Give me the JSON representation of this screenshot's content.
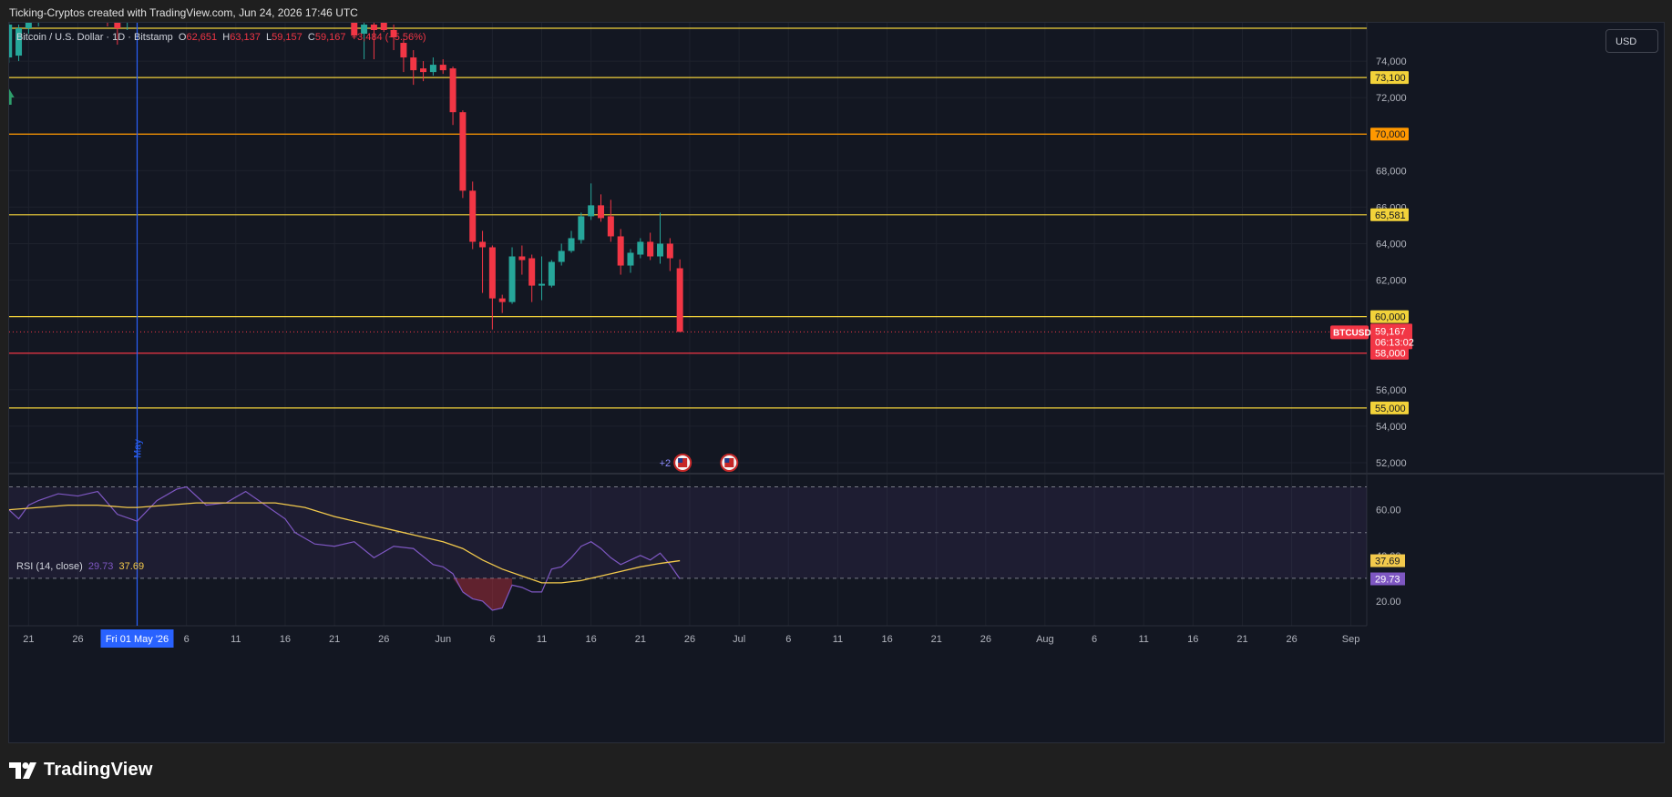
{
  "header": {
    "caption": "Ticking-Cryptos created with TradingView.com, Jun 24, 2026 17:46 UTC"
  },
  "legend": {
    "symbol": "Bitcoin / U.S. Dollar · 1D · Bitstamp",
    "open_label": "O",
    "open": "62,651",
    "high_label": "H",
    "high": "63,137",
    "low_label": "L",
    "low": "59,157",
    "close_label": "C",
    "close": "59,167",
    "change": "−3,484 (−5.56%)"
  },
  "currency_button": "USD",
  "rsi_legend": {
    "label": "RSI (14, close)",
    "rsi_value": "29.73",
    "ma_value": "37.69"
  },
  "footer": {
    "brand": "TradingView"
  },
  "colors": {
    "up": "#26a69a",
    "down": "#f23645",
    "level_yellow": "#f2d23a",
    "level_orange": "#ff9800",
    "level_red": "#f23645",
    "rsi_line": "#7e57c2",
    "rsi_ma": "#f2c94c",
    "background": "#131722",
    "date_marker": "#2962ff"
  },
  "chart_data": {
    "type": "candlestick",
    "price_axis": {
      "ylim": [
        51500,
        75800
      ],
      "ticks": [
        52000,
        54000,
        56000,
        58000,
        60000,
        62000,
        64000,
        66000,
        68000,
        70000,
        72000,
        74000
      ],
      "tick_labels": [
        "52,000",
        "54,000",
        "56,000",
        "58,000",
        "60,000",
        "62,000",
        "64,000",
        "66,000",
        "68,000",
        "70,000",
        "72,000",
        "74,000"
      ]
    },
    "horizontal_levels": [
      {
        "price": 75800,
        "label": "",
        "color": "#f2d23a"
      },
      {
        "price": 73100,
        "label": "73,100",
        "color": "#f2d23a"
      },
      {
        "price": 70000,
        "label": "70,000",
        "color": "#ff9800"
      },
      {
        "price": 65581,
        "label": "65,581",
        "color": "#f2d23a"
      },
      {
        "price": 60000,
        "label": "60,000",
        "color": "#f2d23a"
      },
      {
        "price": 58000,
        "label": "58,000",
        "color": "#f23645"
      },
      {
        "price": 55000,
        "label": "55,000",
        "color": "#f2d23a"
      }
    ],
    "last_price": {
      "symbol": "BTCUSD",
      "price": 59167,
      "label": "59,167",
      "countdown": "06:13:02"
    },
    "time_axis": {
      "tick_labels": [
        "21",
        "26",
        "Fri 01 May '26",
        "6",
        "11",
        "16",
        "21",
        "26",
        "Jun",
        "6",
        "11",
        "16",
        "21",
        "26",
        "Jul",
        "6",
        "11",
        "16",
        "21",
        "26",
        "Aug",
        "6",
        "11",
        "16",
        "21",
        "26",
        "Sep"
      ],
      "tick_day_index": [
        -11,
        -6,
        0,
        5,
        10,
        15,
        20,
        25,
        31,
        36,
        41,
        46,
        51,
        56,
        61,
        66,
        71,
        76,
        81,
        86,
        92,
        97,
        102,
        107,
        112,
        117,
        123
      ],
      "highlighted_label": "Fri 01 May '26",
      "vertical_marker_day_index": 0,
      "vertical_marker_label": "May"
    },
    "candles": [
      {
        "d": -13,
        "o": 74200,
        "h": 76500,
        "l": 73900,
        "c": 76000
      },
      {
        "d": -12,
        "o": 74300,
        "h": 76000,
        "l": 74000,
        "c": 75800
      },
      {
        "d": -11,
        "o": 75800,
        "h": 76800,
        "l": 75500,
        "c": 76300
      },
      {
        "d": -10,
        "o": 76300,
        "h": 76800,
        "l": 75900,
        "c": 76500
      },
      {
        "d": -3,
        "o": 76500,
        "h": 76800,
        "l": 75900,
        "c": 76100
      },
      {
        "d": -2,
        "o": 76100,
        "h": 76500,
        "l": 74900,
        "c": 75800
      },
      {
        "d": -1,
        "o": 76200,
        "h": 76600,
        "l": 75700,
        "c": 76500
      },
      {
        "d": 22,
        "o": 76200,
        "h": 76500,
        "l": 75200,
        "c": 75400
      },
      {
        "d": 23,
        "o": 75500,
        "h": 76200,
        "l": 74100,
        "c": 76000
      },
      {
        "d": 24,
        "o": 76000,
        "h": 76400,
        "l": 74100,
        "c": 75700
      },
      {
        "d": 25,
        "o": 76200,
        "h": 76600,
        "l": 75600,
        "c": 75700
      },
      {
        "d": 26,
        "o": 75700,
        "h": 76000,
        "l": 74600,
        "c": 75300
      },
      {
        "d": 27,
        "o": 75000,
        "h": 75200,
        "l": 73400,
        "c": 74200
      },
      {
        "d": 28,
        "o": 74200,
        "h": 74600,
        "l": 72700,
        "c": 73500
      },
      {
        "d": 29,
        "o": 73600,
        "h": 74000,
        "l": 72900,
        "c": 73400
      },
      {
        "d": 30,
        "o": 73400,
        "h": 74200,
        "l": 73200,
        "c": 73800
      },
      {
        "d": 31,
        "o": 73800,
        "h": 74100,
        "l": 73300,
        "c": 73500
      },
      {
        "d": 32,
        "o": 73600,
        "h": 73700,
        "l": 70500,
        "c": 71200
      },
      {
        "d": 33,
        "o": 71200,
        "h": 71300,
        "l": 66500,
        "c": 66900
      },
      {
        "d": 34,
        "o": 66900,
        "h": 67400,
        "l": 63700,
        "c": 64100
      },
      {
        "d": 35,
        "o": 64100,
        "h": 64700,
        "l": 61300,
        "c": 63800
      },
      {
        "d": 36,
        "o": 63800,
        "h": 63900,
        "l": 59300,
        "c": 61000
      },
      {
        "d": 37,
        "o": 61000,
        "h": 61200,
        "l": 60200,
        "c": 60800
      },
      {
        "d": 38,
        "o": 60800,
        "h": 63800,
        "l": 60700,
        "c": 63300
      },
      {
        "d": 39,
        "o": 63300,
        "h": 63900,
        "l": 62300,
        "c": 63100
      },
      {
        "d": 40,
        "o": 63200,
        "h": 63400,
        "l": 60800,
        "c": 61700
      },
      {
        "d": 41,
        "o": 61700,
        "h": 63300,
        "l": 60900,
        "c": 61800
      },
      {
        "d": 42,
        "o": 61700,
        "h": 63100,
        "l": 61600,
        "c": 63000
      },
      {
        "d": 43,
        "o": 63000,
        "h": 64000,
        "l": 62800,
        "c": 63600
      },
      {
        "d": 44,
        "o": 63600,
        "h": 64700,
        "l": 63500,
        "c": 64300
      },
      {
        "d": 45,
        "o": 64200,
        "h": 65700,
        "l": 64000,
        "c": 65500
      },
      {
        "d": 46,
        "o": 65500,
        "h": 67300,
        "l": 65300,
        "c": 66100
      },
      {
        "d": 47,
        "o": 66100,
        "h": 66700,
        "l": 65200,
        "c": 65400
      },
      {
        "d": 48,
        "o": 65500,
        "h": 66400,
        "l": 64100,
        "c": 64400
      },
      {
        "d": 49,
        "o": 64400,
        "h": 64800,
        "l": 62300,
        "c": 62800
      },
      {
        "d": 50,
        "o": 62800,
        "h": 63700,
        "l": 62400,
        "c": 63500
      },
      {
        "d": 51,
        "o": 63400,
        "h": 64300,
        "l": 63200,
        "c": 64100
      },
      {
        "d": 52,
        "o": 64100,
        "h": 64600,
        "l": 63100,
        "c": 63300
      },
      {
        "d": 53,
        "o": 63300,
        "h": 65700,
        "l": 62900,
        "c": 64000
      },
      {
        "d": 54,
        "o": 64000,
        "h": 64300,
        "l": 62500,
        "c": 63200
      },
      {
        "d": 55,
        "o": 62651,
        "h": 63137,
        "l": 59157,
        "c": 59167
      }
    ],
    "event_markers": [
      {
        "d": 55,
        "label": "+2"
      },
      {
        "d": 60,
        "label": ""
      }
    ],
    "rsi": {
      "title": "RSI (14, close)",
      "ylim": [
        10,
        75
      ],
      "ticks": [
        20,
        40,
        60
      ],
      "tick_labels": [
        "20.00",
        "40.00",
        "60.00"
      ],
      "bands": {
        "upper": 70,
        "middle": 50,
        "lower": 30
      },
      "rsi_series": [
        {
          "d": -13,
          "v": 60
        },
        {
          "d": -12,
          "v": 56
        },
        {
          "d": -11,
          "v": 62
        },
        {
          "d": -10,
          "v": 64
        },
        {
          "d": -8,
          "v": 67
        },
        {
          "d": -6,
          "v": 66
        },
        {
          "d": -4,
          "v": 68
        },
        {
          "d": -2,
          "v": 58
        },
        {
          "d": 0,
          "v": 55
        },
        {
          "d": 2,
          "v": 64
        },
        {
          "d": 4,
          "v": 69
        },
        {
          "d": 5,
          "v": 70
        },
        {
          "d": 7,
          "v": 62
        },
        {
          "d": 9,
          "v": 63
        },
        {
          "d": 11,
          "v": 68
        },
        {
          "d": 13,
          "v": 62
        },
        {
          "d": 15,
          "v": 56
        },
        {
          "d": 16,
          "v": 50
        },
        {
          "d": 18,
          "v": 45
        },
        {
          "d": 20,
          "v": 44
        },
        {
          "d": 22,
          "v": 46
        },
        {
          "d": 24,
          "v": 39
        },
        {
          "d": 26,
          "v": 44
        },
        {
          "d": 28,
          "v": 43
        },
        {
          "d": 30,
          "v": 36
        },
        {
          "d": 31,
          "v": 35
        },
        {
          "d": 32,
          "v": 32
        },
        {
          "d": 33,
          "v": 24
        },
        {
          "d": 34,
          "v": 21
        },
        {
          "d": 35,
          "v": 20
        },
        {
          "d": 36,
          "v": 16
        },
        {
          "d": 37,
          "v": 17
        },
        {
          "d": 38,
          "v": 27
        },
        {
          "d": 39,
          "v": 26
        },
        {
          "d": 40,
          "v": 24
        },
        {
          "d": 41,
          "v": 24
        },
        {
          "d": 42,
          "v": 34
        },
        {
          "d": 43,
          "v": 35
        },
        {
          "d": 44,
          "v": 39
        },
        {
          "d": 45,
          "v": 44
        },
        {
          "d": 46,
          "v": 46
        },
        {
          "d": 47,
          "v": 43
        },
        {
          "d": 48,
          "v": 39
        },
        {
          "d": 49,
          "v": 36
        },
        {
          "d": 50,
          "v": 38
        },
        {
          "d": 51,
          "v": 40
        },
        {
          "d": 52,
          "v": 38
        },
        {
          "d": 53,
          "v": 41
        },
        {
          "d": 54,
          "v": 36
        },
        {
          "d": 55,
          "v": 29.73
        }
      ],
      "ma_series": [
        {
          "d": -13,
          "v": 60
        },
        {
          "d": -10,
          "v": 61
        },
        {
          "d": -7,
          "v": 62
        },
        {
          "d": -4,
          "v": 62
        },
        {
          "d": -1,
          "v": 61
        },
        {
          "d": 0,
          "v": 61
        },
        {
          "d": 3,
          "v": 62
        },
        {
          "d": 6,
          "v": 63
        },
        {
          "d": 10,
          "v": 63
        },
        {
          "d": 14,
          "v": 63
        },
        {
          "d": 17,
          "v": 61
        },
        {
          "d": 20,
          "v": 57
        },
        {
          "d": 23,
          "v": 54
        },
        {
          "d": 26,
          "v": 51
        },
        {
          "d": 29,
          "v": 48
        },
        {
          "d": 31,
          "v": 46
        },
        {
          "d": 33,
          "v": 43
        },
        {
          "d": 35,
          "v": 38
        },
        {
          "d": 37,
          "v": 34
        },
        {
          "d": 39,
          "v": 31
        },
        {
          "d": 41,
          "v": 28
        },
        {
          "d": 43,
          "v": 28
        },
        {
          "d": 45,
          "v": 29
        },
        {
          "d": 47,
          "v": 31
        },
        {
          "d": 49,
          "v": 33
        },
        {
          "d": 51,
          "v": 35
        },
        {
          "d": 53,
          "v": 36.5
        },
        {
          "d": 55,
          "v": 37.69
        }
      ]
    }
  }
}
